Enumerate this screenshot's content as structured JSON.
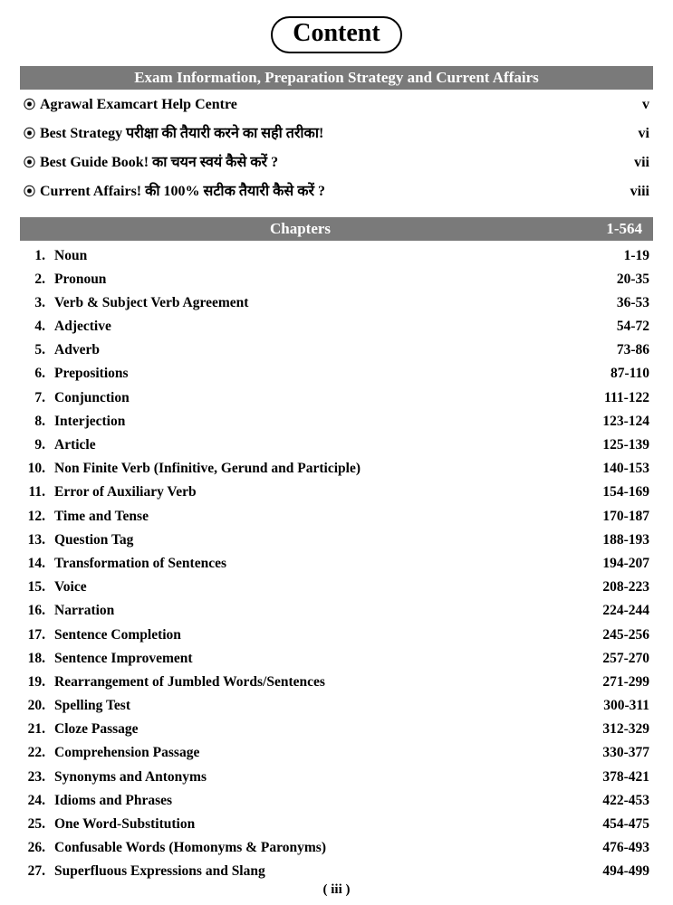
{
  "title": "Content",
  "section1": {
    "heading": "Exam Information, Preparation Strategy and Current Affairs",
    "items": [
      {
        "label": "Agrawal Examcart Help Centre",
        "page": "v"
      },
      {
        "label": "Best Strategy परीक्षा की तैयारी करने का सही तरीका!",
        "page": "vi"
      },
      {
        "label": "Best Guide Book! का चयन स्वयं कैसे करें ?",
        "page": "vii"
      },
      {
        "label": "Current Affairs! की 100% सटीक तैयारी कैसे करें ?",
        "page": "viii"
      }
    ]
  },
  "section2": {
    "heading": "Chapters",
    "range": "1-564",
    "items": [
      {
        "num": "1.",
        "label": "Noun",
        "pages": "1-19"
      },
      {
        "num": "2.",
        "label": "Pronoun",
        "pages": "20-35"
      },
      {
        "num": "3.",
        "label": "Verb & Subject Verb Agreement",
        "pages": "36-53"
      },
      {
        "num": "4.",
        "label": "Adjective",
        "pages": "54-72"
      },
      {
        "num": "5.",
        "label": "Adverb",
        "pages": "73-86"
      },
      {
        "num": "6.",
        "label": "Prepositions",
        "pages": "87-110"
      },
      {
        "num": "7.",
        "label": "Conjunction",
        "pages": "111-122"
      },
      {
        "num": "8.",
        "label": "Interjection",
        "pages": "123-124"
      },
      {
        "num": "9.",
        "label": "Article",
        "pages": "125-139"
      },
      {
        "num": "10.",
        "label": "Non Finite Verb (Infinitive, Gerund and Participle)",
        "pages": "140-153"
      },
      {
        "num": "11.",
        "label": "Error of Auxiliary Verb",
        "pages": "154-169"
      },
      {
        "num": "12.",
        "label": "Time and Tense",
        "pages": "170-187"
      },
      {
        "num": "13.",
        "label": "Question Tag",
        "pages": "188-193"
      },
      {
        "num": "14.",
        "label": "Transformation of Sentences",
        "pages": "194-207"
      },
      {
        "num": "15.",
        "label": "Voice",
        "pages": "208-223"
      },
      {
        "num": "16.",
        "label": "Narration",
        "pages": "224-244"
      },
      {
        "num": "17.",
        "label": "Sentence Completion",
        "pages": "245-256"
      },
      {
        "num": "18.",
        "label": "Sentence Improvement",
        "pages": "257-270"
      },
      {
        "num": "19.",
        "label": "Rearrangement of Jumbled Words/Sentences",
        "pages": "271-299"
      },
      {
        "num": "20.",
        "label": "Spelling Test",
        "pages": "300-311"
      },
      {
        "num": "21.",
        "label": "Cloze Passage",
        "pages": "312-329"
      },
      {
        "num": "22.",
        "label": "Comprehension Passage",
        "pages": "330-377"
      },
      {
        "num": "23.",
        "label": "Synonyms and Antonyms",
        "pages": "378-421"
      },
      {
        "num": "24.",
        "label": "Idioms and Phrases",
        "pages": "422-453"
      },
      {
        "num": "25.",
        "label": "One Word-Substitution",
        "pages": "454-475"
      },
      {
        "num": "26.",
        "label": "Confusable Words (Homonyms & Paronyms)",
        "pages": "476-493"
      },
      {
        "num": "27.",
        "label": "Superfluous Expressions and Slang",
        "pages": "494-499"
      }
    ]
  },
  "footer": "( iii )",
  "bullet_glyph": "⦿"
}
